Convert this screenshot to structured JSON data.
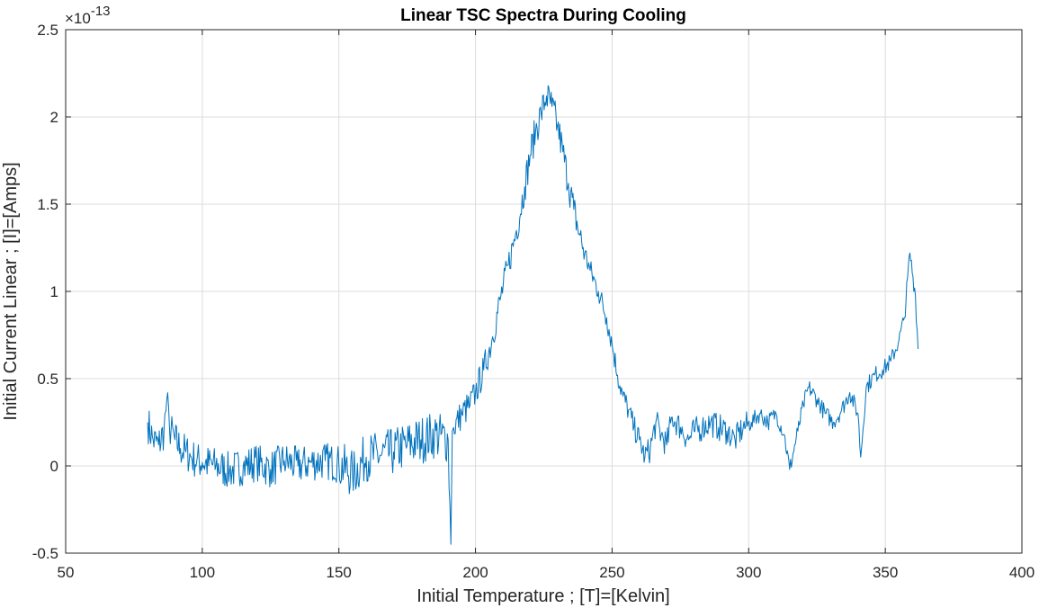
{
  "colors": {
    "series": "#0072bd",
    "grid": "#dcdcdc",
    "axis": "#262626",
    "background": "#ffffff"
  },
  "chart_data": {
    "type": "line",
    "title": "Linear TSC Spectra During Cooling",
    "xlabel": "Initial Temperature ; [T]=[Kelvin]",
    "ylabel": "Initial Current Linear ; [I]=[Amps]",
    "xlim": [
      50,
      400
    ],
    "ylim": [
      -0.5,
      2.5
    ],
    "y_exponent": "×10^-13",
    "y_exponent_base": "×10",
    "y_exponent_power": "-13",
    "grid": true,
    "xticks": [
      "50",
      "100",
      "150",
      "200",
      "250",
      "300",
      "350",
      "400"
    ],
    "yticks": [
      "-0.5",
      "0",
      "0.5",
      "1",
      "1.5",
      "2",
      "2.5"
    ],
    "noise_seed": 7,
    "series": [
      {
        "color": "#0072bd",
        "x": [
          80,
          82,
          84,
          86,
          87,
          88,
          90,
          92,
          94,
          96,
          98,
          100,
          105,
          110,
          115,
          120,
          125,
          130,
          135,
          140,
          145,
          150,
          155,
          160,
          165,
          170,
          175,
          180,
          185,
          190,
          191,
          191.5,
          192,
          195,
          198,
          200,
          203,
          206,
          209,
          212,
          215,
          218,
          220,
          222,
          224,
          226,
          228,
          230,
          232,
          234,
          236,
          238,
          240,
          242,
          245,
          248,
          250,
          252,
          254,
          256,
          258,
          260,
          262,
          264,
          266,
          268,
          270,
          272,
          275,
          278,
          280,
          283,
          286,
          289,
          292,
          295,
          298,
          301,
          304,
          307,
          310,
          313,
          315,
          318,
          320,
          322,
          325,
          328,
          331,
          334,
          337,
          340,
          341,
          343,
          346,
          349,
          352,
          355,
          357,
          359,
          361,
          362
        ],
        "y": [
          0.25,
          0.15,
          0.12,
          0.2,
          0.38,
          0.22,
          0.15,
          0.1,
          0.08,
          0.05,
          0.03,
          0.02,
          0.0,
          -0.03,
          0.0,
          0.02,
          -0.02,
          0.03,
          0.0,
          0.02,
          0.03,
          0.01,
          -0.05,
          0.05,
          0.06,
          0.08,
          0.12,
          0.15,
          0.18,
          0.15,
          -0.45,
          0.2,
          0.22,
          0.3,
          0.35,
          0.42,
          0.55,
          0.72,
          0.95,
          1.15,
          1.35,
          1.6,
          1.78,
          1.92,
          2.02,
          2.12,
          2.06,
          1.95,
          1.8,
          1.62,
          1.47,
          1.33,
          1.22,
          1.12,
          1.0,
          0.85,
          0.7,
          0.52,
          0.4,
          0.32,
          0.22,
          0.15,
          0.05,
          0.1,
          0.25,
          0.18,
          0.12,
          0.28,
          0.22,
          0.15,
          0.2,
          0.22,
          0.25,
          0.22,
          0.2,
          0.15,
          0.22,
          0.25,
          0.3,
          0.25,
          0.3,
          0.18,
          -0.02,
          0.2,
          0.35,
          0.45,
          0.38,
          0.3,
          0.25,
          0.32,
          0.42,
          0.3,
          0.05,
          0.45,
          0.52,
          0.55,
          0.6,
          0.72,
          0.85,
          1.22,
          0.98,
          0.67
        ]
      }
    ]
  }
}
